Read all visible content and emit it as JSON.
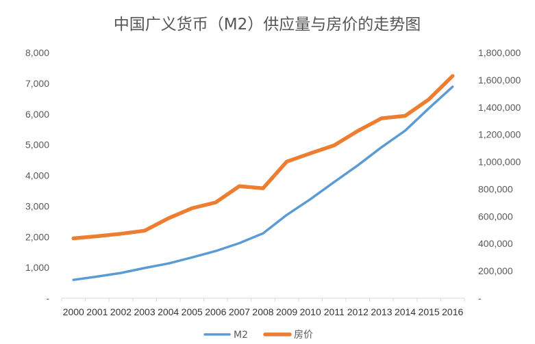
{
  "chart_data": {
    "type": "line",
    "title": "中国广义货币（M2）供应量与房价的走势图",
    "categories": [
      "2000",
      "2001",
      "2002",
      "2003",
      "2004",
      "2005",
      "2006",
      "2007",
      "2008",
      "2009",
      "2010",
      "2011",
      "2012",
      "2013",
      "2014",
      "2015",
      "2016"
    ],
    "y_left": {
      "range": [
        0,
        8000
      ],
      "ticks": [
        0,
        1000,
        2000,
        3000,
        4000,
        5000,
        6000,
        7000,
        8000
      ],
      "tick_labels": [
        "-",
        "1,000",
        "2,000",
        "3,000",
        "4,000",
        "5,000",
        "6,000",
        "7,000",
        "8,000"
      ]
    },
    "y_right": {
      "range": [
        0,
        1800000
      ],
      "ticks": [
        0,
        200000,
        400000,
        600000,
        800000,
        1000000,
        1200000,
        1400000,
        1600000,
        1800000
      ],
      "tick_labels": [
        "-",
        "200,000",
        "400,000",
        "600,000",
        "800,000",
        "1,000,000",
        "1,200,000",
        "1,400,000",
        "1,600,000",
        "1,800,000"
      ]
    },
    "series": [
      {
        "name": "M2",
        "axis": "right",
        "color": "#5B9BD5",
        "values": [
          134610,
          158302,
          185007,
          221223,
          254107,
          298756,
          345578,
          403442,
          475167,
          610225,
          725852,
          851591,
          974149,
          1106525,
          1228375,
          1392278,
          1550067
        ]
      },
      {
        "name": "房价",
        "axis": "left",
        "color": "#ED7D31",
        "values": [
          1950,
          2020,
          2100,
          2200,
          2600,
          2930,
          3120,
          3650,
          3580,
          4450,
          4720,
          4980,
          5450,
          5860,
          5940,
          6480,
          7240
        ]
      }
    ],
    "legend": [
      "M2",
      "房价"
    ],
    "legend_position": "bottom"
  }
}
